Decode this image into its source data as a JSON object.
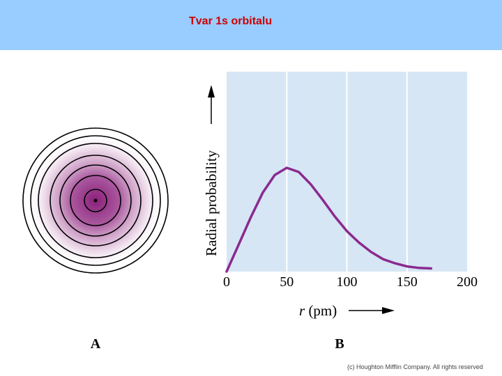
{
  "slide": {
    "title": "Tvar 1s orbitalu",
    "header_color": "#99ccff",
    "title_color": "#cc0000",
    "copyright": "(c) Houghton Mifflin Company. All rights reserved"
  },
  "panel_a": {
    "label": "A",
    "ring_count": 7,
    "fill_color": "#8a1f7a"
  },
  "panel_b": {
    "label": "B"
  },
  "chart_data": {
    "type": "line",
    "xlabel_italic": "r",
    "xlabel_rest": " (pm)",
    "ylabel": "Radial probability",
    "xlim": [
      0,
      200
    ],
    "ylim": [
      0,
      1
    ],
    "x_ticks": [
      "0",
      "50",
      "100",
      "150",
      "200"
    ],
    "grid": "vertical",
    "background": "#d6e6f5",
    "line_color": "#8b2a8f",
    "series": [
      {
        "x": [
          0,
          10,
          20,
          30,
          40,
          50,
          60,
          70,
          80,
          90,
          100,
          110,
          120,
          130,
          140,
          150,
          160,
          170
        ],
        "y": [
          0.0,
          0.26,
          0.52,
          0.76,
          0.93,
          1.0,
          0.96,
          0.84,
          0.69,
          0.53,
          0.39,
          0.28,
          0.19,
          0.12,
          0.08,
          0.05,
          0.035,
          0.03
        ]
      }
    ]
  }
}
